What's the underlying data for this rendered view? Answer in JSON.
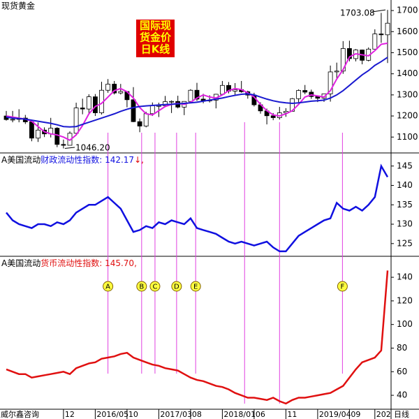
{
  "chart_data": [
    {
      "type": "candlestick",
      "title": "现货黄金",
      "badge": [
        "国际现",
        "货金价",
        "日K线"
      ],
      "annotations": [
        "1703.08",
        "1046.20"
      ],
      "ylim": [
        1028,
        1750
      ],
      "yticks": [
        1100,
        1200,
        1300,
        1400,
        1500,
        1600,
        1700
      ],
      "open": [
        1200,
        1183,
        1184,
        1190,
        1172,
        1095,
        1133,
        1115,
        1142,
        1065,
        1061,
        1118,
        1238,
        1233,
        1291,
        1215,
        1322,
        1351,
        1309,
        1316,
        1277,
        1173,
        1152,
        1211,
        1249,
        1249,
        1268,
        1269,
        1242,
        1269,
        1322,
        1280,
        1271,
        1275,
        1303,
        1345,
        1318,
        1325,
        1315,
        1299,
        1253,
        1224,
        1201,
        1192,
        1215,
        1222,
        1282,
        1321,
        1313,
        1292,
        1284,
        1305,
        1409,
        1413,
        1520,
        1472,
        1513,
        1464,
        1517,
        1589,
        1585
      ],
      "high": [
        1224,
        1224,
        1232,
        1205,
        1175,
        1169,
        1146,
        1191,
        1147,
        1088,
        1127,
        1263,
        1282,
        1303,
        1304,
        1362,
        1375,
        1366,
        1352,
        1318,
        1337,
        1188,
        1220,
        1264,
        1263,
        1295,
        1274,
        1296,
        1270,
        1327,
        1357,
        1305,
        1298,
        1305,
        1366,
        1361,
        1356,
        1366,
        1320,
        1310,
        1265,
        1235,
        1214,
        1243,
        1237,
        1285,
        1326,
        1347,
        1325,
        1297,
        1306,
        1439,
        1453,
        1555,
        1557,
        1517,
        1515,
        1525,
        1611,
        1689,
        1703.08
      ],
      "low": [
        1178,
        1170,
        1170,
        1162,
        1080,
        1077,
        1100,
        1098,
        1052,
        1046.2,
        1061,
        1107,
        1208,
        1212,
        1200,
        1207,
        1310,
        1302,
        1302,
        1241,
        1171,
        1123,
        1146,
        1200,
        1195,
        1242,
        1214,
        1236,
        1204,
        1265,
        1271,
        1260,
        1264,
        1236,
        1302,
        1307,
        1301,
        1310,
        1282,
        1245,
        1211,
        1160,
        1180,
        1183,
        1196,
        1221,
        1265,
        1303,
        1281,
        1266,
        1267,
        1268,
        1380,
        1400,
        1459,
        1459,
        1445,
        1459,
        1517,
        1547,
        1451
      ],
      "close": [
        1183,
        1184,
        1190,
        1172,
        1095,
        1133,
        1115,
        1142,
        1065,
        1061,
        1118,
        1238,
        1233,
        1291,
        1215,
        1322,
        1351,
        1309,
        1316,
        1277,
        1173,
        1152,
        1211,
        1249,
        1249,
        1268,
        1269,
        1242,
        1269,
        1322,
        1280,
        1271,
        1275,
        1303,
        1345,
        1318,
        1325,
        1315,
        1299,
        1253,
        1224,
        1201,
        1192,
        1215,
        1222,
        1282,
        1321,
        1313,
        1292,
        1284,
        1305,
        1409,
        1413,
        1520,
        1472,
        1513,
        1464,
        1517,
        1589,
        1585,
        1640
      ],
      "ma_lines": [
        {
          "color": "#e020e0",
          "values": [
            1200,
            1195,
            1190,
            1185,
            1175,
            1150,
            1125,
            1115,
            1110,
            1100,
            1085,
            1110,
            1155,
            1210,
            1245,
            1260,
            1290,
            1320,
            1330,
            1315,
            1285,
            1240,
            1210,
            1205,
            1225,
            1245,
            1255,
            1260,
            1255,
            1265,
            1285,
            1300,
            1290,
            1285,
            1300,
            1320,
            1330,
            1325,
            1310,
            1290,
            1255,
            1225,
            1205,
            1200,
            1210,
            1225,
            1255,
            1290,
            1300,
            1295,
            1290,
            1320,
            1375,
            1420,
            1480,
            1495,
            1490,
            1485,
            1510,
            1540,
            1545
          ]
        },
        {
          "color": "#1a1ad0",
          "values": [
            1195,
            1190,
            1188,
            1185,
            1180,
            1175,
            1170,
            1165,
            1158,
            1150,
            1148,
            1150,
            1160,
            1170,
            1180,
            1190,
            1200,
            1210,
            1222,
            1232,
            1240,
            1245,
            1248,
            1250,
            1252,
            1254,
            1256,
            1258,
            1260,
            1262,
            1265,
            1270,
            1275,
            1280,
            1285,
            1292,
            1298,
            1303,
            1305,
            1300,
            1290,
            1280,
            1272,
            1266,
            1262,
            1260,
            1262,
            1266,
            1270,
            1272,
            1275,
            1285,
            1300,
            1320,
            1345,
            1370,
            1395,
            1415,
            1440,
            1458,
            1478
          ]
        }
      ],
      "vlines": [
        37.5,
        43
      ]
    },
    {
      "type": "line",
      "label_prefix": "A美国流动",
      "label": "财政流动性指数: 142.17",
      "label_suffix": "↓,",
      "ylim": [
        121.9,
        148.2
      ],
      "yticks": [
        125,
        130,
        135,
        140,
        145
      ],
      "series": [
        {
          "color": "#1010e0",
          "values": [
            133,
            131,
            130,
            129.5,
            129,
            130,
            130,
            129.5,
            130.5,
            130,
            131,
            133,
            134,
            135,
            135,
            136,
            137,
            135.5,
            134,
            131,
            128,
            128.5,
            129.5,
            129,
            130.5,
            130,
            131,
            130.5,
            130,
            131.5,
            129,
            128.5,
            128,
            127.5,
            126.5,
            125.5,
            125,
            125.5,
            125,
            124.5,
            125,
            125.5,
            124,
            123,
            123,
            125,
            127,
            128,
            129,
            130,
            131,
            131.5,
            135.5,
            134,
            133.5,
            134.5,
            133.5,
            135,
            137,
            145,
            142.17
          ]
        }
      ]
    },
    {
      "type": "line",
      "label_prefix": "A美国流动",
      "label": "货币流动性指数: 145.70,",
      "ylim": [
        28.8,
        157.2
      ],
      "yticks": [
        40,
        60,
        80,
        100,
        120,
        140
      ],
      "series": [
        {
          "color": "#e01010",
          "values": [
            62,
            60,
            58,
            58,
            55,
            56,
            57,
            58,
            59,
            60,
            58,
            63,
            65,
            67,
            68,
            71,
            72,
            73,
            75,
            76,
            72,
            70,
            68,
            66,
            65,
            63,
            62,
            61,
            58,
            55,
            53,
            52,
            50,
            48,
            47,
            45,
            42,
            40,
            38,
            38,
            37,
            36,
            38,
            35,
            33,
            36,
            38,
            38,
            39,
            40,
            41,
            42,
            45,
            48,
            55,
            62,
            68,
            70,
            72,
            78,
            145.7
          ]
        }
      ],
      "categories": [
        null,
        null,
        null,
        null,
        null,
        null,
        null,
        null,
        null,
        "12",
        null,
        null,
        null,
        null,
        "2016/05",
        null,
        null,
        null,
        null,
        "10",
        null,
        null,
        null,
        null,
        "2017/03",
        null,
        null,
        null,
        null,
        "08",
        null,
        null,
        null,
        null,
        "2018/01",
        null,
        null,
        null,
        null,
        "06",
        null,
        null,
        null,
        null,
        "11",
        null,
        null,
        null,
        null,
        "2019/04",
        null,
        null,
        null,
        null,
        "09",
        null,
        null,
        null,
        "202",
        null,
        null
      ],
      "source": "威尔鑫咨询",
      "xlabel": "日线",
      "markers": [
        {
          "label": "A",
          "x": 16
        },
        {
          "label": "B",
          "x": 21.3
        },
        {
          "label": "C",
          "x": 23.4
        },
        {
          "label": "D",
          "x": 26.8
        },
        {
          "label": "E",
          "x": 29.8
        },
        {
          "label": "F",
          "x": 52.9
        }
      ]
    }
  ]
}
